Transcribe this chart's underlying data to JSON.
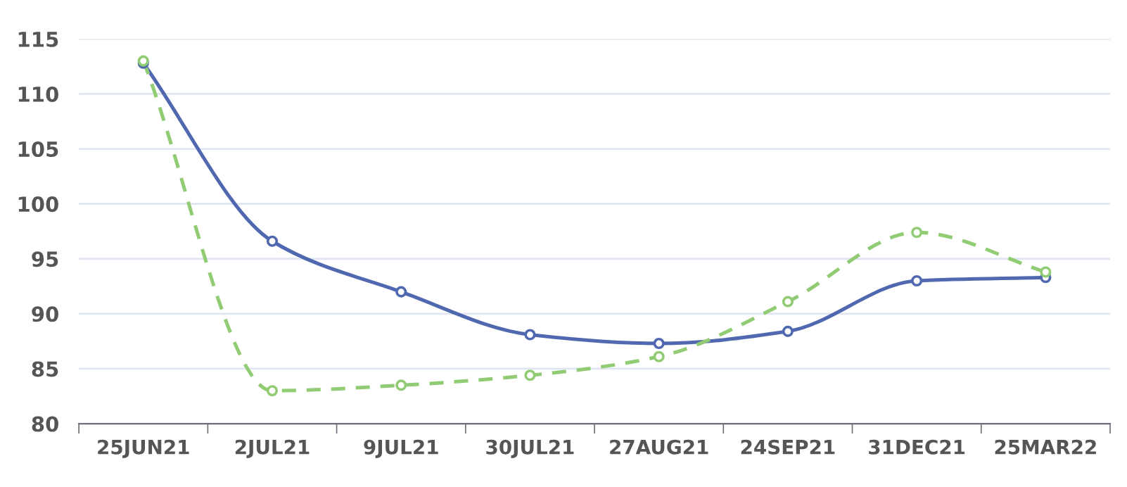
{
  "chart_data": {
    "type": "line",
    "categories": [
      "25JUN21",
      "2JUL21",
      "9JUL21",
      "30JUL21",
      "27AUG21",
      "24SEP21",
      "31DEC21",
      "25MAR22"
    ],
    "series": [
      {
        "color": "#5068b0",
        "values": [
          112.8,
          96.6,
          92.0,
          88.1,
          87.3,
          88.4,
          93.0,
          93.3
        ],
        "line_style": "solid"
      },
      {
        "color": "#91cc75",
        "values": [
          113.0,
          83.0,
          83.5,
          84.4,
          86.1,
          91.1,
          97.4,
          93.8
        ],
        "line_style": "dashed"
      }
    ],
    "ylim": [
      80,
      115
    ],
    "yticks": [
      80,
      85,
      90,
      95,
      100,
      105,
      110,
      115
    ],
    "grid": "y",
    "marker": "circle",
    "legend": false
  }
}
